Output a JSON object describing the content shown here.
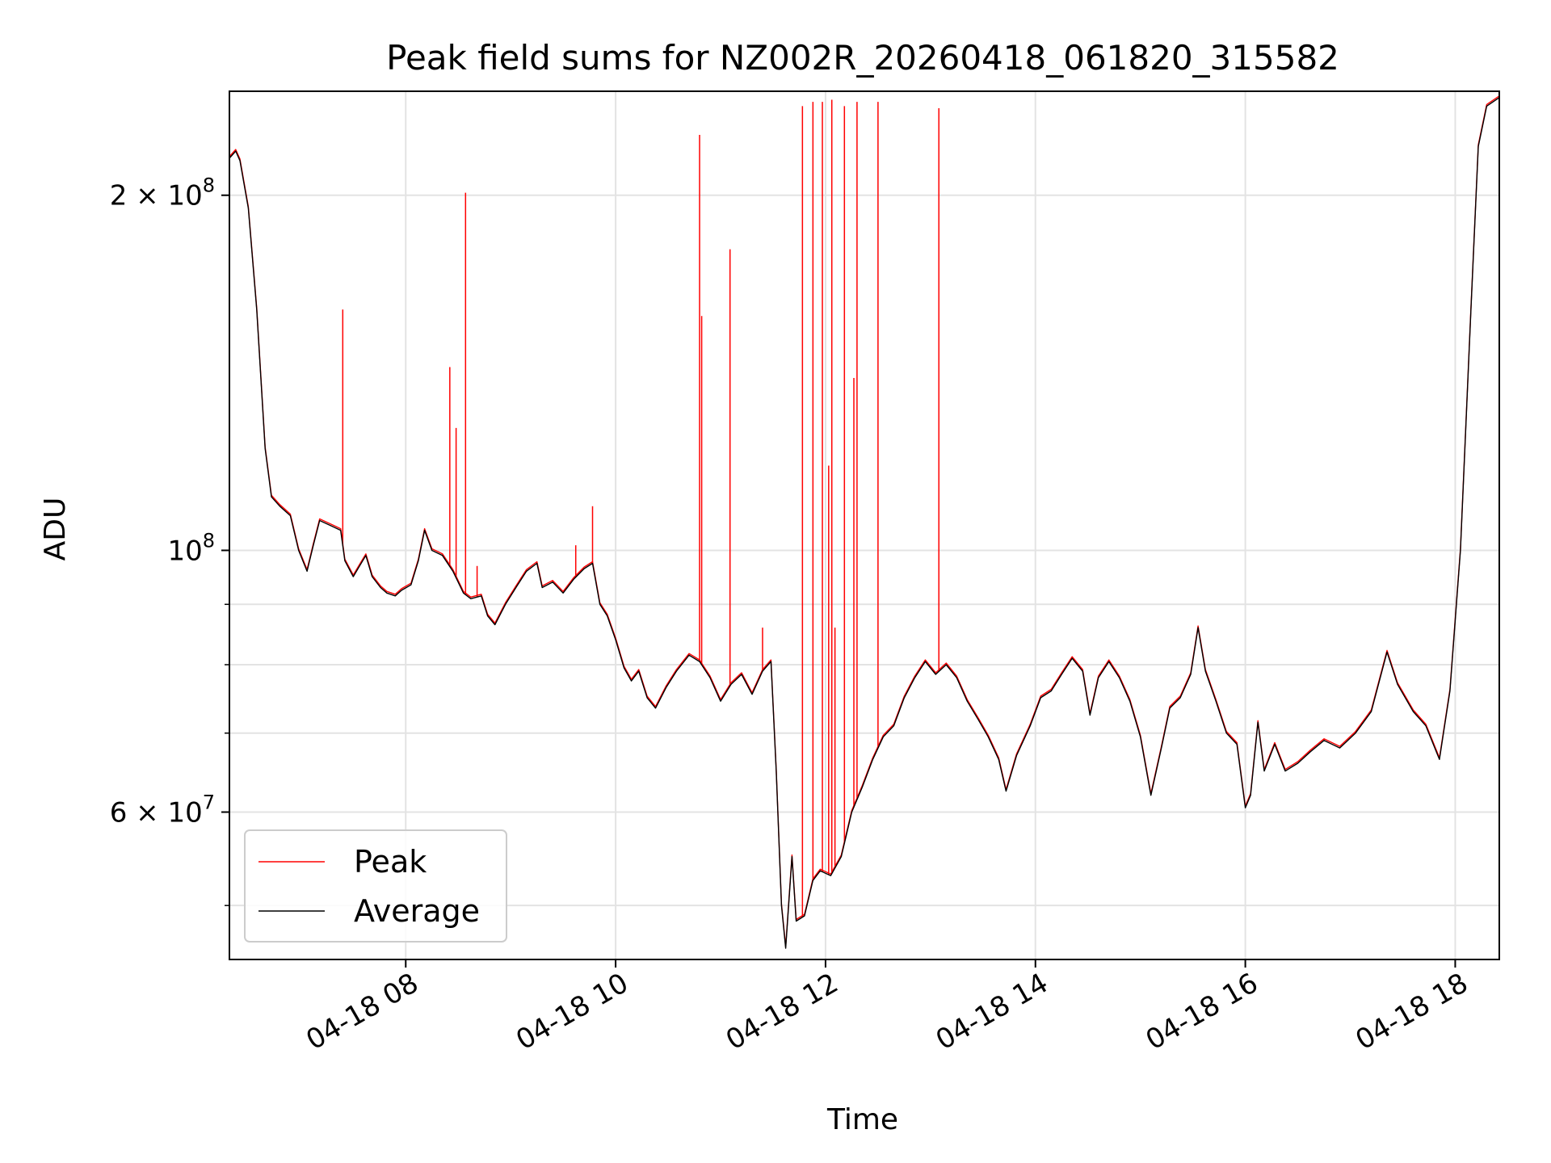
{
  "chart_data": {
    "type": "line",
    "title": "Peak field sums for NZ002R_20260418_061820_315582",
    "xlabel": "Time",
    "ylabel": "ADU",
    "yscale": "log",
    "ylim": [
      45000000,
      245000000
    ],
    "xlim_hours": [
      6.32,
      18.42
    ],
    "grid": true,
    "legend_position": "lower-left",
    "x_ticks": [
      {
        "hour": 8,
        "label": "04-18 08"
      },
      {
        "hour": 10,
        "label": "04-18 10"
      },
      {
        "hour": 12,
        "label": "04-18 12"
      },
      {
        "hour": 14,
        "label": "04-18 14"
      },
      {
        "hour": 16,
        "label": "04-18 16"
      },
      {
        "hour": 18,
        "label": "04-18 18"
      }
    ],
    "y_major_ticks": [
      {
        "value": 60000000,
        "mantissa": "6",
        "exponent": "7"
      },
      {
        "value": 100000000,
        "mantissa": "",
        "exponent": "8"
      },
      {
        "value": 200000000,
        "mantissa": "2",
        "exponent": "8"
      }
    ],
    "y_minor_ticks": [
      50000000,
      70000000,
      80000000,
      90000000
    ],
    "times_mult": "×",
    "tens_base": "10",
    "series": [
      {
        "name": "Peak",
        "color": "#ff0000",
        "spikes": [
          [
            7.4,
            160000000
          ],
          [
            8.42,
            143000000
          ],
          [
            8.48,
            127000000
          ],
          [
            8.57,
            201000000
          ],
          [
            8.68,
            97000000
          ],
          [
            9.62,
            101000000
          ],
          [
            9.78,
            109000000
          ],
          [
            10.8,
            225000000
          ],
          [
            10.82,
            158000000
          ],
          [
            11.09,
            180000000
          ],
          [
            11.4,
            86000000
          ],
          [
            11.78,
            238000000
          ],
          [
            11.88,
            240000000
          ],
          [
            11.97,
            240000000
          ],
          [
            12.03,
            118000000
          ],
          [
            12.06,
            241000000
          ],
          [
            12.09,
            86000000
          ],
          [
            12.18,
            238000000
          ],
          [
            12.27,
            140000000
          ],
          [
            12.3,
            240000000
          ],
          [
            12.5,
            240000000
          ],
          [
            13.08,
            237000000
          ]
        ]
      },
      {
        "name": "Average",
        "color": "#000000",
        "points": [
          [
            6.32,
            215000000
          ],
          [
            6.38,
            218000000
          ],
          [
            6.42,
            214000000
          ],
          [
            6.5,
            195000000
          ],
          [
            6.58,
            160000000
          ],
          [
            6.66,
            122000000
          ],
          [
            6.72,
            111000000
          ],
          [
            6.8,
            109000000
          ],
          [
            6.9,
            107000000
          ],
          [
            6.98,
            100000000
          ],
          [
            7.06,
            96000000
          ],
          [
            7.12,
            101000000
          ],
          [
            7.18,
            106000000
          ],
          [
            7.28,
            105000000
          ],
          [
            7.38,
            104000000
          ],
          [
            7.42,
            98000000
          ],
          [
            7.5,
            95000000
          ],
          [
            7.56,
            97000000
          ],
          [
            7.62,
            99000000
          ],
          [
            7.68,
            95000000
          ],
          [
            7.76,
            93000000
          ],
          [
            7.82,
            92000000
          ],
          [
            7.9,
            91500000
          ],
          [
            7.96,
            92500000
          ],
          [
            8.05,
            93500000
          ],
          [
            8.12,
            98000000
          ],
          [
            8.18,
            104000000
          ],
          [
            8.25,
            100000000
          ],
          [
            8.35,
            99000000
          ],
          [
            8.45,
            96000000
          ],
          [
            8.55,
            92000000
          ],
          [
            8.62,
            91000000
          ],
          [
            8.72,
            91500000
          ],
          [
            8.78,
            88000000
          ],
          [
            8.85,
            86500000
          ],
          [
            8.95,
            90000000
          ],
          [
            9.05,
            93000000
          ],
          [
            9.15,
            96000000
          ],
          [
            9.25,
            97500000
          ],
          [
            9.3,
            93000000
          ],
          [
            9.4,
            94000000
          ],
          [
            9.5,
            92000000
          ],
          [
            9.6,
            94500000
          ],
          [
            9.7,
            96500000
          ],
          [
            9.78,
            97500000
          ],
          [
            9.85,
            90000000
          ],
          [
            9.92,
            88000000
          ],
          [
            10.0,
            84000000
          ],
          [
            10.08,
            79500000
          ],
          [
            10.15,
            77500000
          ],
          [
            10.22,
            79000000
          ],
          [
            10.3,
            75000000
          ],
          [
            10.38,
            73500000
          ],
          [
            10.48,
            76500000
          ],
          [
            10.58,
            79000000
          ],
          [
            10.7,
            81500000
          ],
          [
            10.8,
            80500000
          ],
          [
            10.9,
            78000000
          ],
          [
            11.0,
            74500000
          ],
          [
            11.1,
            77000000
          ],
          [
            11.2,
            78500000
          ],
          [
            11.3,
            75500000
          ],
          [
            11.4,
            79000000
          ],
          [
            11.48,
            80500000
          ],
          [
            11.53,
            65000000
          ],
          [
            11.58,
            50000000
          ],
          [
            11.62,
            46000000
          ],
          [
            11.68,
            55000000
          ],
          [
            11.72,
            48500000
          ],
          [
            11.8,
            49000000
          ],
          [
            11.88,
            52500000
          ],
          [
            11.95,
            53500000
          ],
          [
            12.05,
            53000000
          ],
          [
            12.15,
            55000000
          ],
          [
            12.25,
            60000000
          ],
          [
            12.35,
            63000000
          ],
          [
            12.45,
            66500000
          ],
          [
            12.55,
            69500000
          ],
          [
            12.65,
            71000000
          ],
          [
            12.75,
            75000000
          ],
          [
            12.85,
            78000000
          ],
          [
            12.95,
            80500000
          ],
          [
            13.05,
            78500000
          ],
          [
            13.15,
            80000000
          ],
          [
            13.25,
            78000000
          ],
          [
            13.35,
            74500000
          ],
          [
            13.45,
            72000000
          ],
          [
            13.55,
            69500000
          ],
          [
            13.65,
            66500000
          ],
          [
            13.72,
            62500000
          ],
          [
            13.82,
            67000000
          ],
          [
            13.95,
            71000000
          ],
          [
            14.05,
            75000000
          ],
          [
            14.15,
            76000000
          ],
          [
            14.25,
            78500000
          ],
          [
            14.35,
            81000000
          ],
          [
            14.45,
            79000000
          ],
          [
            14.52,
            72500000
          ],
          [
            14.6,
            78000000
          ],
          [
            14.7,
            80500000
          ],
          [
            14.8,
            78000000
          ],
          [
            14.9,
            74500000
          ],
          [
            15.0,
            69500000
          ],
          [
            15.1,
            62000000
          ],
          [
            15.2,
            68000000
          ],
          [
            15.28,
            73500000
          ],
          [
            15.38,
            75000000
          ],
          [
            15.48,
            78500000
          ],
          [
            15.55,
            86000000
          ],
          [
            15.62,
            79000000
          ],
          [
            15.72,
            74500000
          ],
          [
            15.82,
            70000000
          ],
          [
            15.92,
            68500000
          ],
          [
            16.0,
            60500000
          ],
          [
            16.05,
            62000000
          ],
          [
            16.12,
            71500000
          ],
          [
            16.18,
            65000000
          ],
          [
            16.28,
            68500000
          ],
          [
            16.38,
            65000000
          ],
          [
            16.5,
            66000000
          ],
          [
            16.62,
            67500000
          ],
          [
            16.75,
            69000000
          ],
          [
            16.9,
            68000000
          ],
          [
            17.05,
            70000000
          ],
          [
            17.2,
            73000000
          ],
          [
            17.35,
            82000000
          ],
          [
            17.45,
            77000000
          ],
          [
            17.6,
            73000000
          ],
          [
            17.72,
            71000000
          ],
          [
            17.85,
            66500000
          ],
          [
            17.95,
            76000000
          ],
          [
            18.05,
            100000000
          ],
          [
            18.15,
            160000000
          ],
          [
            18.22,
            220000000
          ],
          [
            18.3,
            238000000
          ],
          [
            18.42,
            242000000
          ]
        ]
      }
    ]
  }
}
